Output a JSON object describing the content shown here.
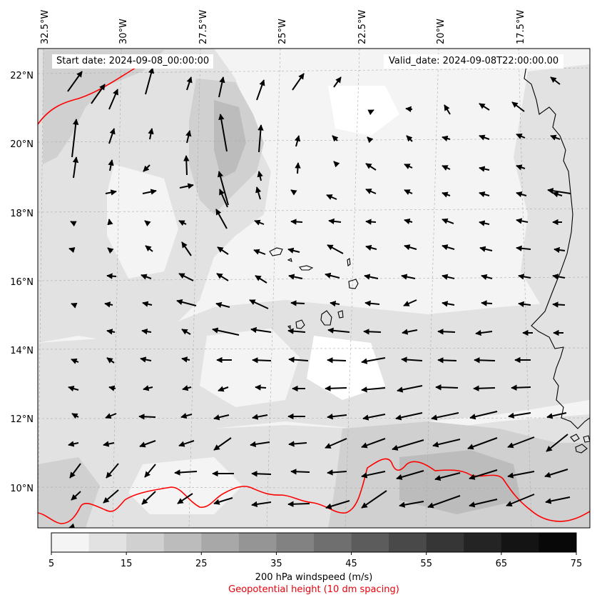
{
  "map": {
    "start_label": "Start date: 2024-09-08_00:00:00",
    "valid_label": "Valid_date: 2024-09-08T22:00:00.00",
    "lon_labels": [
      "32.5°W",
      "30°W",
      "27.5°W",
      "25°W",
      "22.5°W",
      "20°W",
      "17.5°W"
    ],
    "lat_labels": [
      "22°N",
      "20°N",
      "18°N",
      "16°N",
      "14°N",
      "12°N",
      "10°N"
    ],
    "gridlines": true
  },
  "colorbar": {
    "ticks": [
      "5",
      "15",
      "25",
      "35",
      "45",
      "55",
      "65",
      "75"
    ],
    "levels": [
      5,
      10,
      15,
      20,
      25,
      30,
      35,
      40,
      45,
      50,
      55,
      60,
      65,
      70,
      75
    ],
    "colors": [
      "#f4f4f4",
      "#e2e2e2",
      "#d0d0d0",
      "#bcbcbc",
      "#a8a8a8",
      "#959595",
      "#828282",
      "#6f6f6f",
      "#5c5c5c",
      "#494949",
      "#363636",
      "#242424",
      "#141414",
      "#080808"
    ],
    "label": "200 hPa windspeed (m/s)",
    "sublabel": "Geopotential height (10 dm spacing)",
    "sublabel_color": "#e8000b"
  },
  "contour_color": "#ff0000"
}
